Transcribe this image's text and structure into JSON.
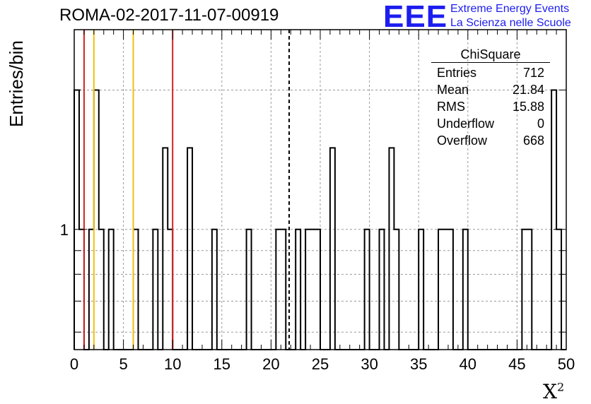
{
  "title": "ROMA-02-2017-11-07-00919",
  "logo": {
    "mark": "EEE",
    "line1": "Extreme Energy Events",
    "line2": "La Scienza nelle Scuole",
    "color": "#1d1df0"
  },
  "chart_data": {
    "type": "bar",
    "histogram": "step",
    "xlabel": "X",
    "xlabel_sup": "2",
    "ylabel": "Entries/bin",
    "xlim": [
      0,
      50
    ],
    "ylim_log": [
      0.55,
      2.7
    ],
    "log_y": true,
    "bin_width": 0.5,
    "grid": true,
    "x_ticks": [
      0,
      5,
      10,
      15,
      20,
      25,
      30,
      35,
      40,
      45,
      50
    ],
    "y_tick_labels": [
      {
        "value": 1,
        "label": "1"
      }
    ],
    "bins": [
      {
        "x": 0.0,
        "y": 2
      },
      {
        "x": 0.5,
        "y": 1
      },
      {
        "x": 1.0,
        "y": 0
      },
      {
        "x": 1.5,
        "y": 1
      },
      {
        "x": 2.0,
        "y": 2
      },
      {
        "x": 2.5,
        "y": 1
      },
      {
        "x": 3.0,
        "y": 0
      },
      {
        "x": 3.5,
        "y": 1
      },
      {
        "x": 6.0,
        "y": 1
      },
      {
        "x": 8.0,
        "y": 1
      },
      {
        "x": 9.0,
        "y": 1.5
      },
      {
        "x": 9.5,
        "y": 1
      },
      {
        "x": 11.5,
        "y": 1.5
      },
      {
        "x": 14.0,
        "y": 1
      },
      {
        "x": 17.5,
        "y": 1
      },
      {
        "x": 20.5,
        "y": 1
      },
      {
        "x": 21.0,
        "y": 1
      },
      {
        "x": 22.5,
        "y": 1
      },
      {
        "x": 23.5,
        "y": 1
      },
      {
        "x": 24.0,
        "y": 1
      },
      {
        "x": 24.5,
        "y": 1
      },
      {
        "x": 26.0,
        "y": 1.5
      },
      {
        "x": 29.5,
        "y": 1
      },
      {
        "x": 31.0,
        "y": 1
      },
      {
        "x": 32.0,
        "y": 1.5
      },
      {
        "x": 32.5,
        "y": 1
      },
      {
        "x": 35.0,
        "y": 1
      },
      {
        "x": 37.0,
        "y": 1
      },
      {
        "x": 37.5,
        "y": 1
      },
      {
        "x": 38.0,
        "y": 1
      },
      {
        "x": 39.5,
        "y": 1
      },
      {
        "x": 45.5,
        "y": 1
      },
      {
        "x": 46.0,
        "y": 1
      },
      {
        "x": 48.5,
        "y": 2
      },
      {
        "x": 49.0,
        "y": 1
      }
    ],
    "reference_lines": [
      {
        "x": 1.0,
        "color": "#d42020",
        "style": "solid"
      },
      {
        "x": 2.0,
        "color": "#f2c010",
        "style": "solid"
      },
      {
        "x": 6.0,
        "color": "#f2c010",
        "style": "solid"
      },
      {
        "x": 10.0,
        "color": "#d42020",
        "style": "solid"
      },
      {
        "x": 21.84,
        "color": "#000000",
        "style": "dashed"
      }
    ]
  },
  "stats": {
    "name": "ChiSquare",
    "rows": [
      {
        "label": "Entries",
        "value": "712"
      },
      {
        "label": "Mean",
        "value": "21.84"
      },
      {
        "label": "RMS",
        "value": "15.88"
      },
      {
        "label": "Underflow",
        "value": "0"
      },
      {
        "label": "Overflow",
        "value": "668"
      }
    ]
  }
}
